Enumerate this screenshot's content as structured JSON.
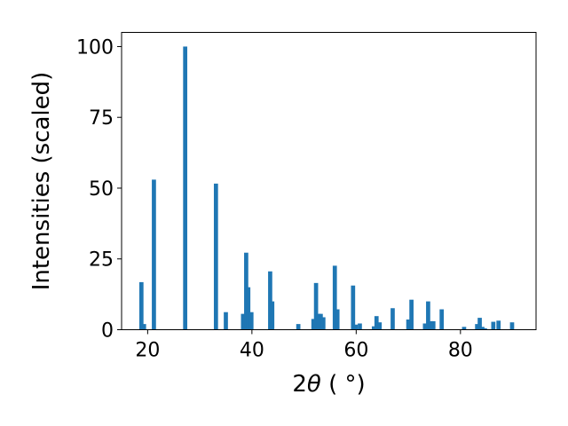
{
  "chart_data": {
    "type": "bar",
    "title": "",
    "xlabel": "2θ (°)",
    "xlabel_parts": {
      "prefix": "2",
      "symbol": "θ",
      "unit": " ( °)"
    },
    "ylabel": "Intensities (scaled)",
    "xlim": [
      15,
      94.5
    ],
    "ylim": [
      0,
      105
    ],
    "xticks": [
      20,
      40,
      60,
      80
    ],
    "yticks": [
      0,
      25,
      50,
      75,
      100
    ],
    "grid": false,
    "legend": "none",
    "bar_width": 0.8,
    "color": "#1f77b4",
    "series": [
      {
        "x": [
          18.8,
          19.3,
          21.2,
          27.2,
          33.1,
          35.0,
          38.3,
          38.9,
          39.3,
          39.9,
          43.5,
          43.9,
          48.9,
          51.8,
          52.3,
          52.8,
          53.2,
          53.7,
          55.9,
          56.4,
          59.4,
          59.9,
          60.7,
          63.4,
          63.9,
          64.5,
          67.0,
          70.0,
          70.6,
          73.2,
          73.8,
          74.3,
          74.8,
          76.4,
          80.7,
          83.2,
          83.7,
          84.2,
          84.7,
          86.3,
          87.3,
          89.9
        ],
        "y": [
          16.8,
          2.0,
          53.0,
          100.0,
          51.6,
          6.2,
          5.6,
          27.2,
          15.0,
          6.2,
          20.6,
          10.0,
          2.0,
          3.8,
          16.5,
          5.6,
          5.6,
          4.4,
          22.6,
          7.2,
          15.6,
          1.8,
          2.2,
          1.2,
          4.8,
          2.6,
          7.6,
          3.6,
          10.6,
          2.2,
          10.0,
          3.0,
          3.0,
          7.2,
          1.0,
          2.0,
          4.2,
          1.0,
          0.5,
          2.8,
          3.2,
          2.6
        ]
      }
    ]
  }
}
